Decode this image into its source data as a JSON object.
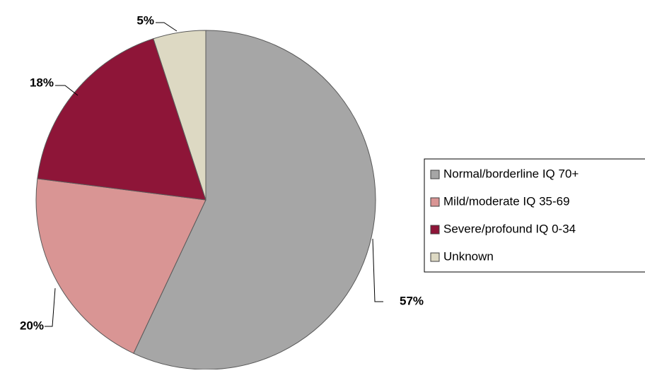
{
  "chart_data": {
    "type": "pie",
    "categories": [
      "Normal/borderline IQ 70+",
      "Mild/moderate IQ 35-69",
      "Severe/profound IQ 0-34",
      "Unknown"
    ],
    "values": [
      57,
      20,
      18,
      5
    ],
    "value_labels": [
      "57%",
      "20%",
      "18%",
      "5%"
    ],
    "colors": [
      "#a6a6a6",
      "#d99594",
      "#8e1538",
      "#ddd9c3"
    ]
  }
}
